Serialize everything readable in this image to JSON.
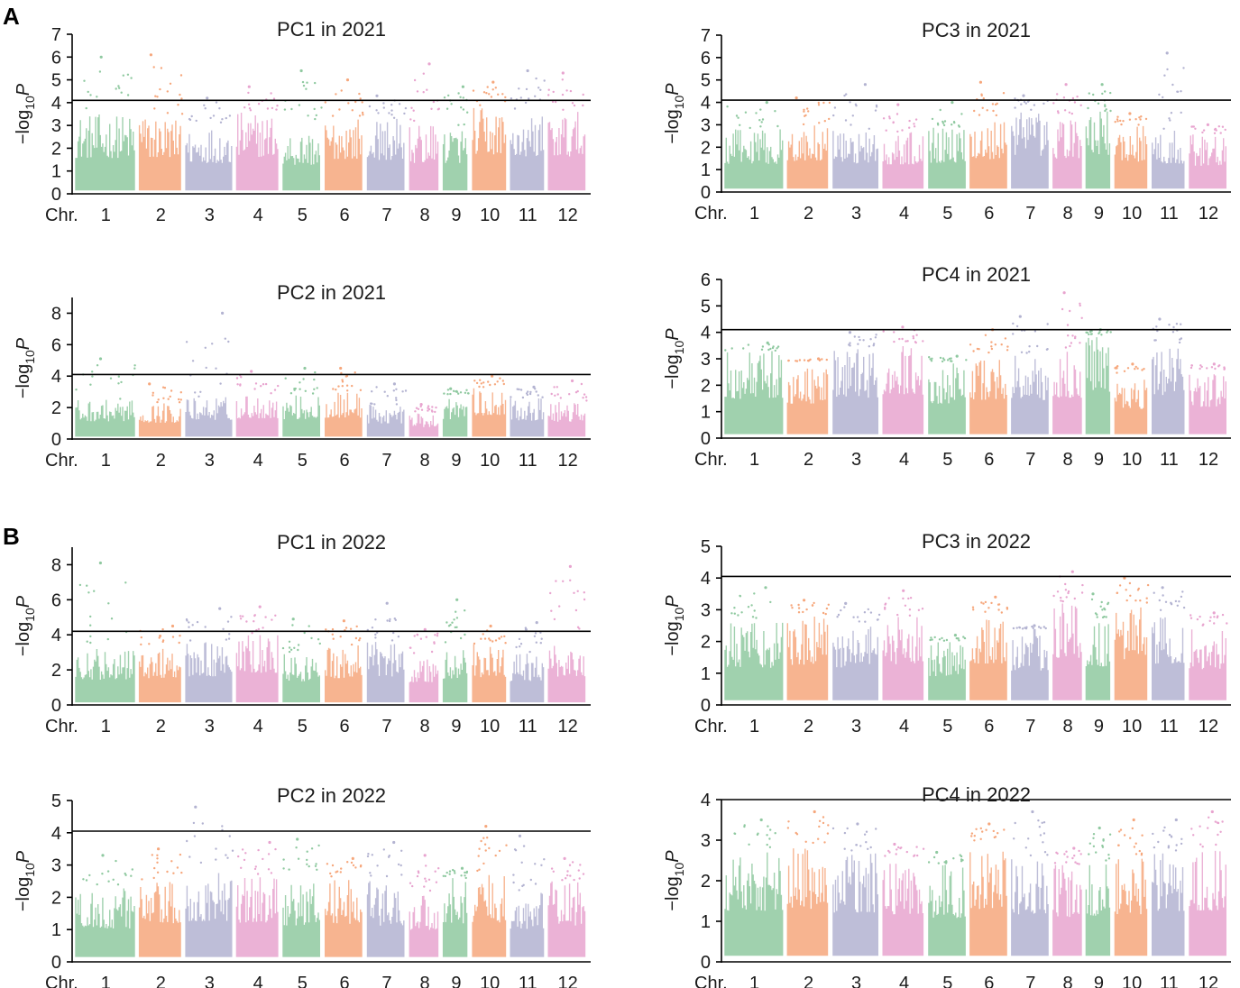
{
  "panel_labels": [
    "A",
    "B"
  ],
  "chromosome_colors": [
    "#8fc9a0",
    "#f6a77c",
    "#b3b3d1",
    "#e8a4cf"
  ],
  "chart_data": [
    {
      "type": "scatter",
      "panel": "A",
      "title": "PC1 in 2021",
      "ylabel": "−log10P",
      "ylim": [
        0,
        7
      ],
      "yticks": [
        0,
        1,
        2,
        3,
        4,
        5,
        6,
        7
      ],
      "x_prefix": "Chr.",
      "categories": [
        "1",
        "2",
        "3",
        "4",
        "5",
        "6",
        "7",
        "8",
        "9",
        "10",
        "11",
        "12"
      ],
      "threshold": 4.1,
      "chromosome_lengths": [
        1.4,
        1.0,
        1.1,
        1.0,
        0.9,
        0.9,
        0.9,
        0.7,
        0.6,
        0.8,
        0.8,
        0.9
      ],
      "chromosome_max": [
        6.0,
        6.1,
        4.2,
        4.7,
        5.4,
        5.0,
        4.3,
        5.7,
        4.7,
        4.9,
        5.4,
        5.3
      ],
      "chromosome_baseline": [
        3.5,
        3.5,
        3.0,
        3.6,
        2.8,
        3.4,
        3.3,
        3.0,
        3.0,
        3.8,
        3.6,
        3.6
      ]
    },
    {
      "type": "scatter",
      "panel": "A",
      "title": "PC2 in 2021",
      "ylabel": "−log10P",
      "ylim": [
        0,
        9
      ],
      "yticks": [
        0,
        2,
        4,
        6,
        8
      ],
      "x_prefix": "Chr.",
      "categories": [
        "1",
        "2",
        "3",
        "4",
        "5",
        "6",
        "7",
        "8",
        "9",
        "10",
        "11",
        "12"
      ],
      "threshold": 4.1,
      "chromosome_lengths": [
        1.4,
        1.0,
        1.1,
        1.0,
        0.9,
        0.9,
        0.9,
        0.7,
        0.6,
        0.8,
        0.8,
        0.9
      ],
      "chromosome_max": [
        5.1,
        3.5,
        8.0,
        4.3,
        4.5,
        4.5,
        3.5,
        2.2,
        3.2,
        4.0,
        3.3,
        3.7
      ],
      "chromosome_baseline": [
        2.5,
        2.3,
        2.7,
        2.9,
        2.8,
        3.0,
        2.2,
        1.7,
        2.8,
        3.3,
        2.6,
        2.4
      ]
    },
    {
      "type": "scatter",
      "panel": "A",
      "title": "PC3 in 2021",
      "ylabel": "−log10P",
      "ylim": [
        0,
        7
      ],
      "yticks": [
        0,
        1,
        2,
        3,
        4,
        5,
        6,
        7
      ],
      "x_prefix": "Chr.",
      "categories": [
        "1",
        "2",
        "3",
        "4",
        "5",
        "6",
        "7",
        "8",
        "9",
        "10",
        "11",
        "12"
      ],
      "threshold": 4.1,
      "chromosome_lengths": [
        1.4,
        1.0,
        1.1,
        1.0,
        0.9,
        0.9,
        0.9,
        0.7,
        0.6,
        0.8,
        0.8,
        0.9
      ],
      "chromosome_max": [
        4.0,
        4.2,
        4.8,
        3.9,
        4.0,
        4.9,
        4.3,
        4.8,
        4.8,
        3.5,
        6.2,
        3.0
      ],
      "chromosome_baseline": [
        2.8,
        3.0,
        2.8,
        2.7,
        2.9,
        3.2,
        3.6,
        3.3,
        3.6,
        3.0,
        2.8,
        2.6
      ]
    },
    {
      "type": "scatter",
      "panel": "A",
      "title": "PC4 in 2021",
      "ylabel": "−log10P",
      "ylim": [
        0,
        6
      ],
      "yticks": [
        0,
        1,
        2,
        3,
        4,
        5,
        6
      ],
      "x_prefix": "Chr.",
      "categories": [
        "1",
        "2",
        "3",
        "4",
        "5",
        "6",
        "7",
        "8",
        "9",
        "10",
        "11",
        "12"
      ],
      "threshold": 4.1,
      "chromosome_lengths": [
        1.4,
        1.0,
        1.1,
        1.0,
        0.9,
        0.9,
        0.9,
        0.7,
        0.6,
        0.8,
        0.8,
        0.9
      ],
      "chromosome_max": [
        3.6,
        3.0,
        4.0,
        4.2,
        3.1,
        4.1,
        4.6,
        5.5,
        4.1,
        2.8,
        4.5,
        2.8
      ],
      "chromosome_baseline": [
        3.3,
        2.9,
        3.4,
        3.6,
        2.9,
        3.2,
        3.2,
        3.4,
        3.9,
        2.4,
        3.6,
        2.6
      ]
    },
    {
      "type": "scatter",
      "panel": "B",
      "title": "PC1 in 2022",
      "ylabel": "−log10P",
      "ylim": [
        0,
        9
      ],
      "yticks": [
        0,
        2,
        4,
        6,
        8
      ],
      "x_prefix": "Chr.",
      "categories": [
        "1",
        "2",
        "3",
        "4",
        "5",
        "6",
        "7",
        "8",
        "9",
        "10",
        "11",
        "12"
      ],
      "threshold": 4.2,
      "chromosome_lengths": [
        1.4,
        1.0,
        1.1,
        1.0,
        0.9,
        0.9,
        0.9,
        0.7,
        0.6,
        0.8,
        0.8,
        0.9
      ],
      "chromosome_max": [
        8.1,
        4.5,
        5.5,
        5.6,
        4.9,
        4.8,
        5.8,
        4.3,
        6.0,
        4.5,
        4.7,
        7.9
      ],
      "chromosome_baseline": [
        3.2,
        3.4,
        3.6,
        4.0,
        3.0,
        3.4,
        3.6,
        2.8,
        3.3,
        3.5,
        3.0,
        3.6
      ]
    },
    {
      "type": "scatter",
      "panel": "B",
      "title": "PC2 in 2022",
      "ylabel": "−log10P",
      "ylim": [
        0,
        5
      ],
      "yticks": [
        0,
        1,
        2,
        3,
        4,
        5
      ],
      "x_prefix": "Chr.",
      "categories": [
        "1",
        "2",
        "3",
        "4",
        "5",
        "6",
        "7",
        "8",
        "9",
        "10",
        "11",
        "12"
      ],
      "threshold": 4.05,
      "chromosome_lengths": [
        1.4,
        1.0,
        1.1,
        1.0,
        0.9,
        0.9,
        0.9,
        0.7,
        0.6,
        0.8,
        0.8,
        0.9
      ],
      "chromosome_max": [
        3.3,
        3.5,
        4.8,
        3.7,
        3.8,
        3.2,
        3.7,
        3.3,
        2.9,
        4.2,
        3.9,
        3.2
      ],
      "chromosome_baseline": [
        2.3,
        2.5,
        2.8,
        2.7,
        2.5,
        2.6,
        2.5,
        2.2,
        2.6,
        2.7,
        2.2,
        2.5
      ]
    },
    {
      "type": "scatter",
      "panel": "B",
      "title": "PC3 in 2022",
      "ylabel": "−log10P",
      "ylim": [
        0,
        5
      ],
      "yticks": [
        0,
        1,
        2,
        3,
        4,
        5
      ],
      "x_prefix": "Chr.",
      "categories": [
        "1",
        "2",
        "3",
        "4",
        "5",
        "6",
        "7",
        "8",
        "9",
        "10",
        "11",
        "12"
      ],
      "threshold": 4.05,
      "chromosome_lengths": [
        1.4,
        1.0,
        1.1,
        1.0,
        0.9,
        0.9,
        0.9,
        0.7,
        0.6,
        0.8,
        0.8,
        0.9
      ],
      "chromosome_max": [
        3.7,
        3.3,
        3.2,
        3.6,
        2.2,
        3.4,
        2.5,
        4.2,
        3.5,
        4.0,
        3.7,
        2.9
      ],
      "chromosome_baseline": [
        2.6,
        2.8,
        2.6,
        2.8,
        2.0,
        2.9,
        2.4,
        3.2,
        2.7,
        3.2,
        2.9,
        2.5
      ]
    },
    {
      "type": "scatter",
      "panel": "B",
      "title": "PC4 in 2022",
      "ylabel": "−log10P",
      "ylim": [
        0,
        4
      ],
      "yticks": [
        0,
        1,
        2,
        3,
        4
      ],
      "x_prefix": "Chr.",
      "categories": [
        "1",
        "2",
        "3",
        "4",
        "5",
        "6",
        "7",
        "8",
        "9",
        "10",
        "11",
        "12"
      ],
      "threshold": 4.0,
      "chromosome_lengths": [
        1.4,
        1.0,
        1.1,
        1.0,
        0.9,
        0.9,
        0.9,
        0.7,
        0.6,
        0.8,
        0.8,
        0.9
      ],
      "chromosome_max": [
        3.5,
        3.7,
        3.4,
        2.9,
        2.7,
        3.4,
        3.7,
        2.8,
        3.3,
        3.5,
        3.5,
        3.7
      ],
      "chromosome_baseline": [
        2.8,
        2.9,
        2.7,
        2.6,
        2.4,
        2.9,
        2.6,
        2.4,
        2.5,
        2.6,
        2.7,
        2.8
      ]
    }
  ]
}
